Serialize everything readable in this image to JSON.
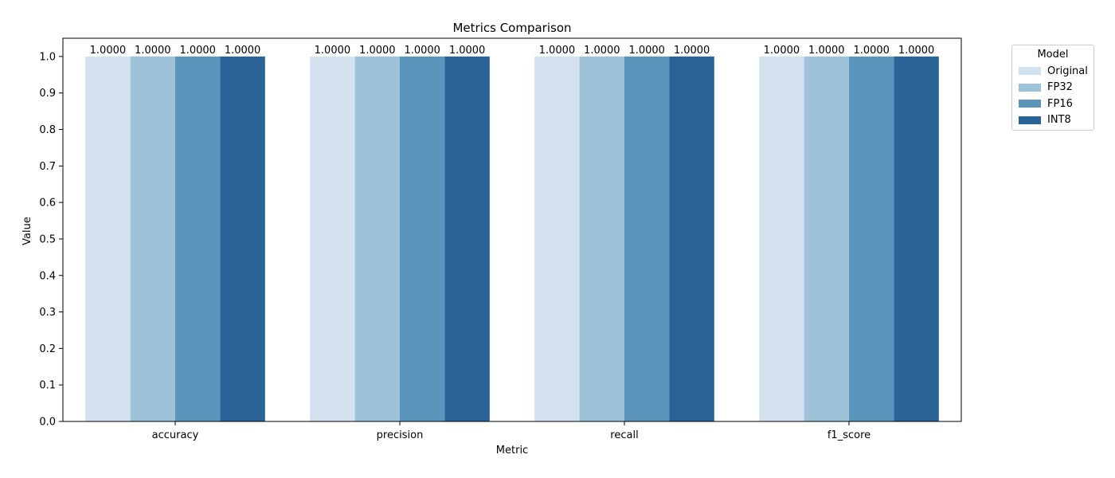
{
  "chart_data": {
    "type": "bar",
    "title": "Metrics Comparison",
    "xlabel": "Metric",
    "ylabel": "Value",
    "categories": [
      "accuracy",
      "precision",
      "recall",
      "f1_score"
    ],
    "ylim": [
      0.0,
      1.05
    ],
    "yticks": [
      "0.0",
      "0.1",
      "0.2",
      "0.3",
      "0.4",
      "0.5",
      "0.6",
      "0.7",
      "0.8",
      "0.9",
      "1.0"
    ],
    "grid": false,
    "legend": {
      "title": "Model",
      "placement": "outside-top-right"
    },
    "series": [
      {
        "name": "Original",
        "color": "#d4e2f0",
        "values": [
          1.0,
          1.0,
          1.0,
          1.0
        ],
        "labels": [
          "1.0000",
          "1.0000",
          "1.0000",
          "1.0000"
        ]
      },
      {
        "name": "FP32",
        "color": "#9ec2d7",
        "values": [
          1.0,
          1.0,
          1.0,
          1.0
        ],
        "labels": [
          "1.0000",
          "1.0000",
          "1.0000",
          "1.0000"
        ]
      },
      {
        "name": "FP16",
        "color": "#5b95bb",
        "values": [
          1.0,
          1.0,
          1.0,
          1.0
        ],
        "labels": [
          "1.0000",
          "1.0000",
          "1.0000",
          "1.0000"
        ]
      },
      {
        "name": "INT8",
        "color": "#2a6398",
        "values": [
          1.0,
          1.0,
          1.0,
          1.0
        ],
        "labels": [
          "1.0000",
          "1.0000",
          "1.0000",
          "1.0000"
        ]
      }
    ]
  }
}
